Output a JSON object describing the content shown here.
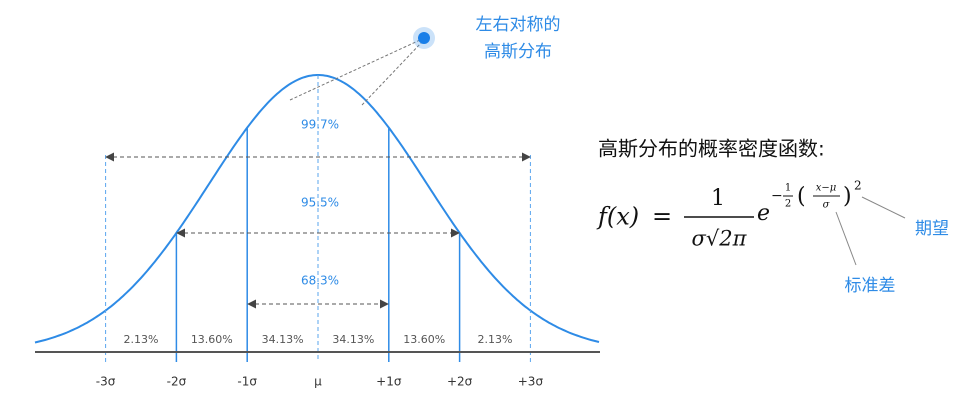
{
  "annotation": {
    "lines": [
      "左右对称的",
      "高斯分布"
    ]
  },
  "coverage": {
    "labels": [
      "99.7%",
      "95.5%",
      "68.3%"
    ]
  },
  "regions": {
    "labels": [
      "2.13%",
      "13.60%",
      "34.13%",
      "34.13%",
      "13.60%",
      "2.13%"
    ]
  },
  "axis": {
    "labels": [
      "-3σ",
      "-2σ",
      "-1σ",
      "μ",
      "+1σ",
      "+2σ",
      "+3σ"
    ]
  },
  "formula": {
    "title": "高斯分布的概率密度函数:",
    "lhs": "f(x)",
    "equals": "=",
    "numerator": "1",
    "denominator": "σ√2π",
    "base": "e",
    "minus": "−",
    "half_num": "1",
    "half_den": "2",
    "open": "(",
    "frac_num": "x−μ",
    "frac_den": "σ",
    "close": ")",
    "power": "2"
  },
  "callouts": {
    "mean": "期望",
    "std": "标准差"
  }
}
